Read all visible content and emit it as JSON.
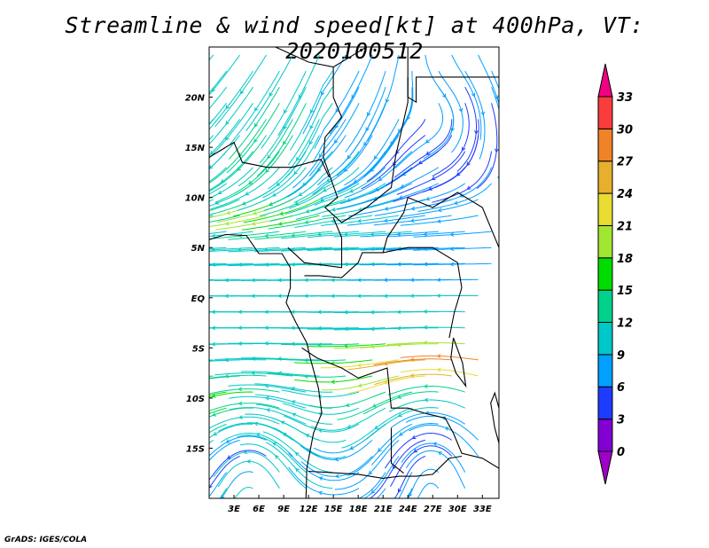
{
  "title": "Streamline & wind speed[kt] at 400hPa, VT: 2020100512",
  "footer": "GrADS: IGES/COLA",
  "map": {
    "lon_range": [
      0,
      35
    ],
    "lat_range": [
      -20,
      25
    ],
    "x_ticks": [
      {
        "lon": 3,
        "label": "3E"
      },
      {
        "lon": 6,
        "label": "6E"
      },
      {
        "lon": 9,
        "label": "9E"
      },
      {
        "lon": 12,
        "label": "12E"
      },
      {
        "lon": 15,
        "label": "15E"
      },
      {
        "lon": 18,
        "label": "18E"
      },
      {
        "lon": 21,
        "label": "21E"
      },
      {
        "lon": 24,
        "label": "24E"
      },
      {
        "lon": 27,
        "label": "27E"
      },
      {
        "lon": 30,
        "label": "30E"
      },
      {
        "lon": 33,
        "label": "33E"
      }
    ],
    "y_ticks": [
      {
        "lat": 20,
        "label": "20N"
      },
      {
        "lat": 15,
        "label": "15N"
      },
      {
        "lat": 10,
        "label": "10N"
      },
      {
        "lat": 5,
        "label": "5N"
      },
      {
        "lat": 0,
        "label": "EQ"
      },
      {
        "lat": -5,
        "label": "5S"
      },
      {
        "lat": -10,
        "label": "10S"
      },
      {
        "lat": -15,
        "label": "15S"
      }
    ]
  },
  "colorbar": {
    "labels": [
      "0",
      "3",
      "6",
      "9",
      "12",
      "15",
      "18",
      "21",
      "24",
      "27",
      "30",
      "33"
    ],
    "levels": [
      0,
      3,
      6,
      9,
      12,
      15,
      18,
      21,
      24,
      27,
      30,
      33
    ],
    "under_color": "#a000c8",
    "colors": [
      "#8200d2",
      "#1e3cff",
      "#00a0ff",
      "#00c8c8",
      "#00d28c",
      "#00dc00",
      "#a0e632",
      "#e6dc32",
      "#e6af2d",
      "#f08228",
      "#fa3c3c"
    ],
    "over_color": "#f00082"
  }
}
